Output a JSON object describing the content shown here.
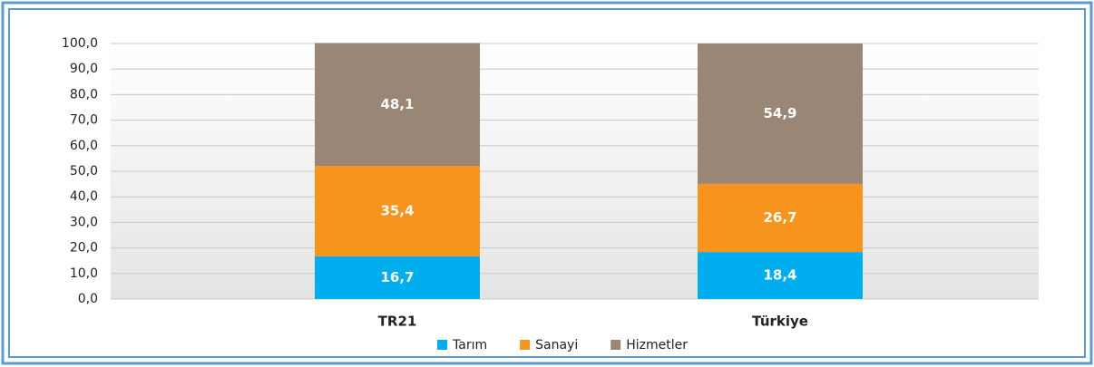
{
  "chart_data": {
    "type": "stacked_bar",
    "categories": [
      "TR21",
      "Türkiye"
    ],
    "series": [
      {
        "name": "Tarım",
        "color": "#00aeef",
        "values": [
          16.7,
          18.4
        ],
        "value_labels": [
          "16,7",
          "18,4"
        ]
      },
      {
        "name": "Sanayi",
        "color": "#f7941d",
        "values": [
          35.4,
          26.7
        ],
        "value_labels": [
          "35,4",
          "26,7"
        ]
      },
      {
        "name": "Hizmetler",
        "color": "#998675",
        "values": [
          48.1,
          54.9
        ],
        "value_labels": [
          "48,1",
          "54,9"
        ]
      }
    ],
    "ylim": [
      0,
      100
    ],
    "yticks": [
      {
        "value": 0,
        "label": "0,0"
      },
      {
        "value": 10,
        "label": "10,0"
      },
      {
        "value": 20,
        "label": "20,0"
      },
      {
        "value": 30,
        "label": "30,0"
      },
      {
        "value": 40,
        "label": "40,0"
      },
      {
        "value": 50,
        "label": "50,0"
      },
      {
        "value": 60,
        "label": "60,0"
      },
      {
        "value": 70,
        "label": "70,0"
      },
      {
        "value": 80,
        "label": "80,0"
      },
      {
        "value": 90,
        "label": "90,0"
      },
      {
        "value": 100,
        "label": "100,0"
      }
    ],
    "grid": true,
    "legend": "bottom"
  }
}
